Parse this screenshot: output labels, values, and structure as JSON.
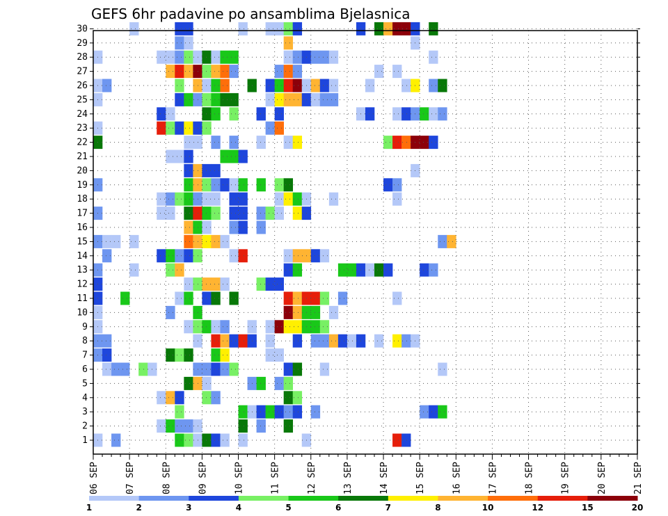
{
  "chart_data": {
    "type": "heatmap",
    "title": "GEFS 6hr padavine po ansamblima Bjelasnica",
    "xlabel": "",
    "ylabel": "",
    "y_ticks": [
      1,
      2,
      3,
      4,
      5,
      6,
      7,
      8,
      9,
      10,
      11,
      12,
      13,
      14,
      15,
      16,
      17,
      18,
      19,
      20,
      21,
      22,
      23,
      24,
      25,
      26,
      27,
      28,
      29,
      30
    ],
    "x_ticks": [
      "06 SEP",
      "07 SEP",
      "08 SEP",
      "09 SEP",
      "10 SEP",
      "11 SEP",
      "12 SEP",
      "13 SEP",
      "14 SEP",
      "15 SEP",
      "16 SEP",
      "17 SEP",
      "18 SEP",
      "19 SEP",
      "20 SEP",
      "21 SEP"
    ],
    "x_steps_per_day": 4,
    "grid": true,
    "colorbar": {
      "labels": [
        "1",
        "2",
        "3",
        "4",
        "5",
        "6",
        "7",
        "8",
        "10",
        "12",
        "15",
        "20"
      ],
      "colors": [
        "#b4c8f8",
        "#6e96f0",
        "#1e46dc",
        "#78f064",
        "#19c819",
        "#087808",
        "#fff000",
        "#ffb432",
        "#ff6e0a",
        "#e61e0a",
        "#8c000a"
      ]
    },
    "cells_note": "each entry = [member, 6h step since 06 SEP 00z, colour class 1-11]",
    "cells": [
      [
        30,
        4,
        1
      ],
      [
        30,
        9,
        3
      ],
      [
        30,
        10,
        3
      ],
      [
        30,
        16,
        1
      ],
      [
        30,
        19,
        1
      ],
      [
        30,
        20,
        1
      ],
      [
        30,
        21,
        4
      ],
      [
        30,
        22,
        3
      ],
      [
        30,
        29,
        3
      ],
      [
        30,
        31,
        6
      ],
      [
        30,
        32,
        8
      ],
      [
        30,
        33,
        11
      ],
      [
        30,
        34,
        11
      ],
      [
        30,
        35,
        3
      ],
      [
        30,
        37,
        6
      ],
      [
        29,
        9,
        2
      ],
      [
        29,
        10,
        1
      ],
      [
        29,
        21,
        8
      ],
      [
        29,
        35,
        1
      ],
      [
        28,
        0,
        1
      ],
      [
        28,
        7,
        1
      ],
      [
        28,
        8,
        1
      ],
      [
        28,
        9,
        2
      ],
      [
        28,
        10,
        4
      ],
      [
        28,
        11,
        1
      ],
      [
        28,
        12,
        6
      ],
      [
        28,
        13,
        1
      ],
      [
        28,
        14,
        5
      ],
      [
        28,
        15,
        5
      ],
      [
        28,
        21,
        1
      ],
      [
        28,
        22,
        2
      ],
      [
        28,
        23,
        3
      ],
      [
        28,
        24,
        2
      ],
      [
        28,
        25,
        2
      ],
      [
        28,
        26,
        1
      ],
      [
        28,
        37,
        1
      ],
      [
        27,
        8,
        8
      ],
      [
        27,
        9,
        10
      ],
      [
        27,
        10,
        8
      ],
      [
        27,
        11,
        11
      ],
      [
        27,
        12,
        4
      ],
      [
        27,
        13,
        8
      ],
      [
        27,
        14,
        9
      ],
      [
        27,
        15,
        2
      ],
      [
        27,
        20,
        2
      ],
      [
        27,
        21,
        9
      ],
      [
        27,
        22,
        2
      ],
      [
        27,
        31,
        1
      ],
      [
        27,
        33,
        1
      ],
      [
        26,
        0,
        1
      ],
      [
        26,
        1,
        2
      ],
      [
        26,
        9,
        4
      ],
      [
        26,
        11,
        8
      ],
      [
        26,
        12,
        1
      ],
      [
        26,
        13,
        5
      ],
      [
        26,
        14,
        9
      ],
      [
        26,
        17,
        6
      ],
      [
        26,
        19,
        3
      ],
      [
        26,
        20,
        5
      ],
      [
        26,
        21,
        10
      ],
      [
        26,
        22,
        11
      ],
      [
        26,
        23,
        1
      ],
      [
        26,
        24,
        8
      ],
      [
        26,
        25,
        3
      ],
      [
        26,
        26,
        1
      ],
      [
        26,
        30,
        1
      ],
      [
        26,
        34,
        1
      ],
      [
        26,
        35,
        7
      ],
      [
        26,
        37,
        2
      ],
      [
        26,
        38,
        6
      ],
      [
        25,
        0,
        1
      ],
      [
        25,
        9,
        3
      ],
      [
        25,
        10,
        5
      ],
      [
        25,
        11,
        2
      ],
      [
        25,
        12,
        4
      ],
      [
        25,
        13,
        5
      ],
      [
        25,
        14,
        6
      ],
      [
        25,
        15,
        6
      ],
      [
        25,
        19,
        1
      ],
      [
        25,
        20,
        7
      ],
      [
        25,
        21,
        8
      ],
      [
        25,
        22,
        8
      ],
      [
        25,
        23,
        3
      ],
      [
        25,
        24,
        1
      ],
      [
        25,
        25,
        2
      ],
      [
        25,
        26,
        2
      ],
      [
        24,
        7,
        3
      ],
      [
        24,
        8,
        1
      ],
      [
        24,
        12,
        6
      ],
      [
        24,
        13,
        5
      ],
      [
        24,
        15,
        4
      ],
      [
        24,
        18,
        3
      ],
      [
        24,
        20,
        3
      ],
      [
        24,
        29,
        1
      ],
      [
        24,
        30,
        3
      ],
      [
        24,
        33,
        1
      ],
      [
        24,
        34,
        3
      ],
      [
        24,
        35,
        2
      ],
      [
        24,
        36,
        5
      ],
      [
        24,
        37,
        1
      ],
      [
        24,
        38,
        2
      ],
      [
        23,
        0,
        1
      ],
      [
        23,
        7,
        10
      ],
      [
        23,
        8,
        4
      ],
      [
        23,
        9,
        3
      ],
      [
        23,
        10,
        7
      ],
      [
        23,
        11,
        3
      ],
      [
        23,
        12,
        4
      ],
      [
        23,
        19,
        2
      ],
      [
        23,
        20,
        9
      ],
      [
        22,
        0,
        6
      ],
      [
        22,
        10,
        1
      ],
      [
        22,
        11,
        1
      ],
      [
        22,
        13,
        2
      ],
      [
        22,
        15,
        2
      ],
      [
        22,
        18,
        1
      ],
      [
        22,
        21,
        1
      ],
      [
        22,
        22,
        7
      ],
      [
        22,
        32,
        4
      ],
      [
        22,
        33,
        10
      ],
      [
        22,
        34,
        9
      ],
      [
        22,
        35,
        11
      ],
      [
        22,
        36,
        11
      ],
      [
        22,
        37,
        3
      ],
      [
        21,
        8,
        1
      ],
      [
        21,
        9,
        1
      ],
      [
        21,
        10,
        3
      ],
      [
        21,
        14,
        5
      ],
      [
        21,
        15,
        5
      ],
      [
        21,
        16,
        3
      ],
      [
        20,
        10,
        3
      ],
      [
        20,
        11,
        8
      ],
      [
        20,
        12,
        3
      ],
      [
        20,
        13,
        3
      ],
      [
        20,
        35,
        1
      ],
      [
        19,
        0,
        2
      ],
      [
        19,
        10,
        5
      ],
      [
        19,
        11,
        8
      ],
      [
        19,
        12,
        4
      ],
      [
        19,
        13,
        2
      ],
      [
        19,
        14,
        3
      ],
      [
        19,
        15,
        1
      ],
      [
        19,
        16,
        5
      ],
      [
        19,
        18,
        5
      ],
      [
        19,
        20,
        4
      ],
      [
        19,
        21,
        6
      ],
      [
        19,
        32,
        3
      ],
      [
        19,
        33,
        2
      ],
      [
        18,
        7,
        1
      ],
      [
        18,
        8,
        2
      ],
      [
        18,
        9,
        4
      ],
      [
        18,
        10,
        5
      ],
      [
        18,
        11,
        2
      ],
      [
        18,
        12,
        1
      ],
      [
        18,
        13,
        1
      ],
      [
        18,
        15,
        3
      ],
      [
        18,
        16,
        3
      ],
      [
        18,
        20,
        1
      ],
      [
        18,
        21,
        7
      ],
      [
        18,
        22,
        5
      ],
      [
        18,
        23,
        1
      ],
      [
        18,
        26,
        1
      ],
      [
        18,
        33,
        1
      ],
      [
        17,
        0,
        2
      ],
      [
        17,
        7,
        1
      ],
      [
        17,
        8,
        1
      ],
      [
        17,
        10,
        6
      ],
      [
        17,
        11,
        10
      ],
      [
        17,
        12,
        5
      ],
      [
        17,
        13,
        4
      ],
      [
        17,
        15,
        3
      ],
      [
        17,
        16,
        3
      ],
      [
        17,
        18,
        2
      ],
      [
        17,
        19,
        4
      ],
      [
        17,
        20,
        1
      ],
      [
        17,
        22,
        7
      ],
      [
        17,
        23,
        3
      ],
      [
        16,
        10,
        8
      ],
      [
        16,
        11,
        5
      ],
      [
        16,
        12,
        1
      ],
      [
        16,
        15,
        2
      ],
      [
        16,
        16,
        3
      ],
      [
        16,
        18,
        2
      ],
      [
        15,
        0,
        2
      ],
      [
        15,
        1,
        1
      ],
      [
        15,
        2,
        1
      ],
      [
        15,
        4,
        1
      ],
      [
        15,
        10,
        9
      ],
      [
        15,
        11,
        8
      ],
      [
        15,
        12,
        7
      ],
      [
        15,
        13,
        8
      ],
      [
        15,
        14,
        1
      ],
      [
        15,
        38,
        2
      ],
      [
        15,
        39,
        8
      ],
      [
        14,
        1,
        2
      ],
      [
        14,
        7,
        3
      ],
      [
        14,
        8,
        5
      ],
      [
        14,
        9,
        2
      ],
      [
        14,
        10,
        3
      ],
      [
        14,
        11,
        4
      ],
      [
        14,
        15,
        1
      ],
      [
        14,
        16,
        10
      ],
      [
        14,
        21,
        1
      ],
      [
        14,
        22,
        8
      ],
      [
        14,
        23,
        8
      ],
      [
        14,
        24,
        3
      ],
      [
        14,
        25,
        1
      ],
      [
        13,
        0,
        2
      ],
      [
        13,
        4,
        1
      ],
      [
        13,
        8,
        4
      ],
      [
        13,
        9,
        8
      ],
      [
        13,
        21,
        3
      ],
      [
        13,
        22,
        5
      ],
      [
        13,
        27,
        5
      ],
      [
        13,
        28,
        5
      ],
      [
        13,
        29,
        3
      ],
      [
        13,
        30,
        1
      ],
      [
        13,
        31,
        6
      ],
      [
        13,
        32,
        3
      ],
      [
        13,
        36,
        3
      ],
      [
        13,
        37,
        2
      ],
      [
        12,
        0,
        3
      ],
      [
        12,
        10,
        1
      ],
      [
        12,
        11,
        4
      ],
      [
        12,
        12,
        8
      ],
      [
        12,
        13,
        8
      ],
      [
        12,
        14,
        1
      ],
      [
        12,
        18,
        4
      ],
      [
        12,
        19,
        3
      ],
      [
        12,
        20,
        3
      ],
      [
        11,
        0,
        3
      ],
      [
        11,
        3,
        5
      ],
      [
        11,
        9,
        1
      ],
      [
        11,
        10,
        5
      ],
      [
        11,
        12,
        3
      ],
      [
        11,
        13,
        6
      ],
      [
        11,
        15,
        6
      ],
      [
        11,
        21,
        10
      ],
      [
        11,
        22,
        8
      ],
      [
        11,
        23,
        10
      ],
      [
        11,
        24,
        10
      ],
      [
        11,
        25,
        4
      ],
      [
        11,
        27,
        2
      ],
      [
        11,
        33,
        1
      ],
      [
        10,
        0,
        1
      ],
      [
        10,
        8,
        2
      ],
      [
        10,
        11,
        5
      ],
      [
        10,
        21,
        11
      ],
      [
        10,
        22,
        8
      ],
      [
        10,
        23,
        5
      ],
      [
        10,
        24,
        5
      ],
      [
        10,
        26,
        1
      ],
      [
        9,
        0,
        1
      ],
      [
        9,
        10,
        1
      ],
      [
        9,
        11,
        4
      ],
      [
        9,
        12,
        5
      ],
      [
        9,
        13,
        1
      ],
      [
        9,
        14,
        2
      ],
      [
        9,
        17,
        1
      ],
      [
        9,
        19,
        1
      ],
      [
        9,
        20,
        11
      ],
      [
        9,
        21,
        7
      ],
      [
        9,
        22,
        7
      ],
      [
        9,
        23,
        5
      ],
      [
        9,
        24,
        5
      ],
      [
        9,
        25,
        4
      ],
      [
        8,
        0,
        2
      ],
      [
        8,
        1,
        2
      ],
      [
        8,
        11,
        1
      ],
      [
        8,
        13,
        10
      ],
      [
        8,
        14,
        8
      ],
      [
        8,
        15,
        3
      ],
      [
        8,
        16,
        10
      ],
      [
        8,
        17,
        3
      ],
      [
        8,
        19,
        1
      ],
      [
        8,
        22,
        3
      ],
      [
        8,
        24,
        2
      ],
      [
        8,
        25,
        2
      ],
      [
        8,
        26,
        8
      ],
      [
        8,
        27,
        3
      ],
      [
        8,
        28,
        1
      ],
      [
        8,
        29,
        3
      ],
      [
        8,
        31,
        1
      ],
      [
        8,
        33,
        7
      ],
      [
        8,
        34,
        2
      ],
      [
        8,
        35,
        1
      ],
      [
        7,
        0,
        2
      ],
      [
        7,
        1,
        3
      ],
      [
        7,
        8,
        6
      ],
      [
        7,
        9,
        4
      ],
      [
        7,
        10,
        6
      ],
      [
        7,
        13,
        5
      ],
      [
        7,
        14,
        7
      ],
      [
        7,
        19,
        1
      ],
      [
        7,
        20,
        1
      ],
      [
        6,
        1,
        1
      ],
      [
        6,
        2,
        2
      ],
      [
        6,
        3,
        2
      ],
      [
        6,
        5,
        4
      ],
      [
        6,
        6,
        1
      ],
      [
        6,
        11,
        2
      ],
      [
        6,
        12,
        2
      ],
      [
        6,
        13,
        3
      ],
      [
        6,
        14,
        2
      ],
      [
        6,
        15,
        4
      ],
      [
        6,
        21,
        3
      ],
      [
        6,
        22,
        6
      ],
      [
        6,
        25,
        1
      ],
      [
        6,
        38,
        1
      ],
      [
        5,
        10,
        6
      ],
      [
        5,
        11,
        8
      ],
      [
        5,
        12,
        1
      ],
      [
        5,
        17,
        2
      ],
      [
        5,
        18,
        5
      ],
      [
        5,
        20,
        2
      ],
      [
        5,
        21,
        4
      ],
      [
        4,
        7,
        1
      ],
      [
        4,
        8,
        8
      ],
      [
        4,
        9,
        3
      ],
      [
        4,
        12,
        4
      ],
      [
        4,
        13,
        2
      ],
      [
        4,
        21,
        6
      ],
      [
        4,
        22,
        4
      ],
      [
        3,
        9,
        4
      ],
      [
        3,
        16,
        5
      ],
      [
        3,
        17,
        1
      ],
      [
        3,
        18,
        3
      ],
      [
        3,
        19,
        5
      ],
      [
        3,
        20,
        3
      ],
      [
        3,
        21,
        2
      ],
      [
        3,
        22,
        3
      ],
      [
        3,
        24,
        2
      ],
      [
        3,
        36,
        2
      ],
      [
        3,
        37,
        3
      ],
      [
        3,
        38,
        5
      ],
      [
        2,
        7,
        1
      ],
      [
        2,
        8,
        5
      ],
      [
        2,
        9,
        2
      ],
      [
        2,
        10,
        2
      ],
      [
        2,
        11,
        1
      ],
      [
        2,
        16,
        6
      ],
      [
        2,
        18,
        2
      ],
      [
        2,
        21,
        6
      ],
      [
        1,
        0,
        1
      ],
      [
        1,
        2,
        2
      ],
      [
        1,
        9,
        5
      ],
      [
        1,
        10,
        4
      ],
      [
        1,
        11,
        1
      ],
      [
        1,
        12,
        6
      ],
      [
        1,
        13,
        3
      ],
      [
        1,
        14,
        1
      ],
      [
        1,
        16,
        1
      ],
      [
        1,
        23,
        1
      ],
      [
        1,
        33,
        10
      ],
      [
        1,
        34,
        3
      ]
    ]
  }
}
